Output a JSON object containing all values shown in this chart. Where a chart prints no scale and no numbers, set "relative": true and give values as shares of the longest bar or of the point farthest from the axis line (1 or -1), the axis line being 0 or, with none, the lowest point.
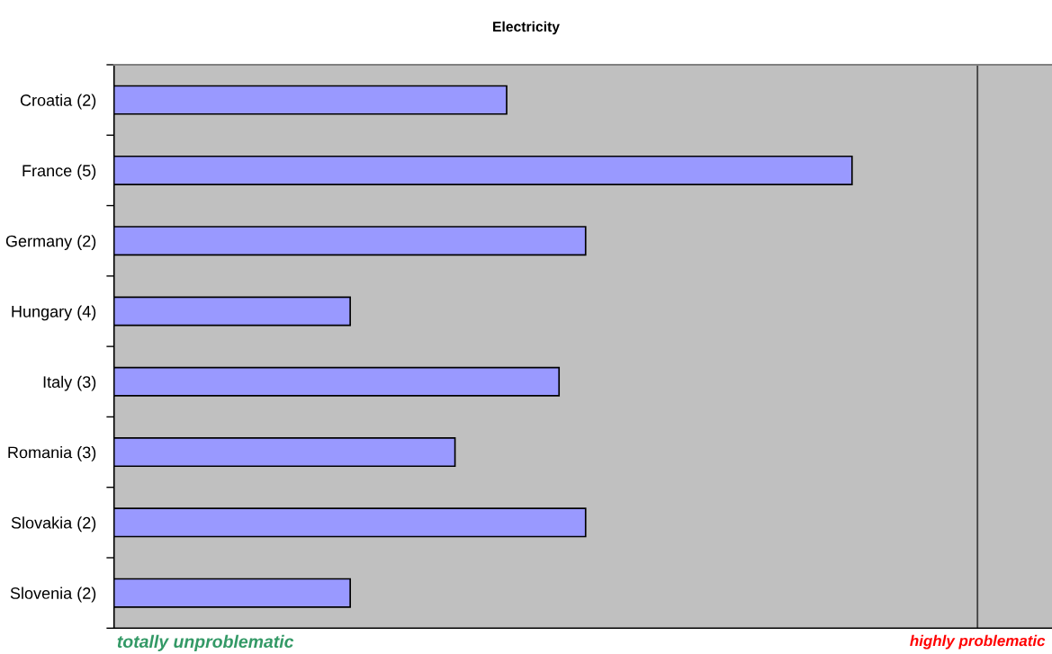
{
  "chart_data": {
    "type": "bar",
    "orientation": "horizontal",
    "relative": true,
    "title": "Electricity",
    "categories": [
      "Croatia (2)",
      "France (5)",
      "Germany (2)",
      "Hungary (4)",
      "Italy (3)",
      "Romania (3)",
      "Slovakia (2)",
      "Slovenia (2)"
    ],
    "values": [
      0.532,
      1,
      0.639,
      0.32,
      0.603,
      0.462,
      0.639,
      0.32
    ],
    "color": "#9999ff",
    "ref_lines": [
      {
        "axis": "x",
        "value": 1.17,
        "label": "highly problematic",
        "color": "#404040"
      }
    ],
    "annotations": [
      "totally unproblematic"
    ]
  }
}
